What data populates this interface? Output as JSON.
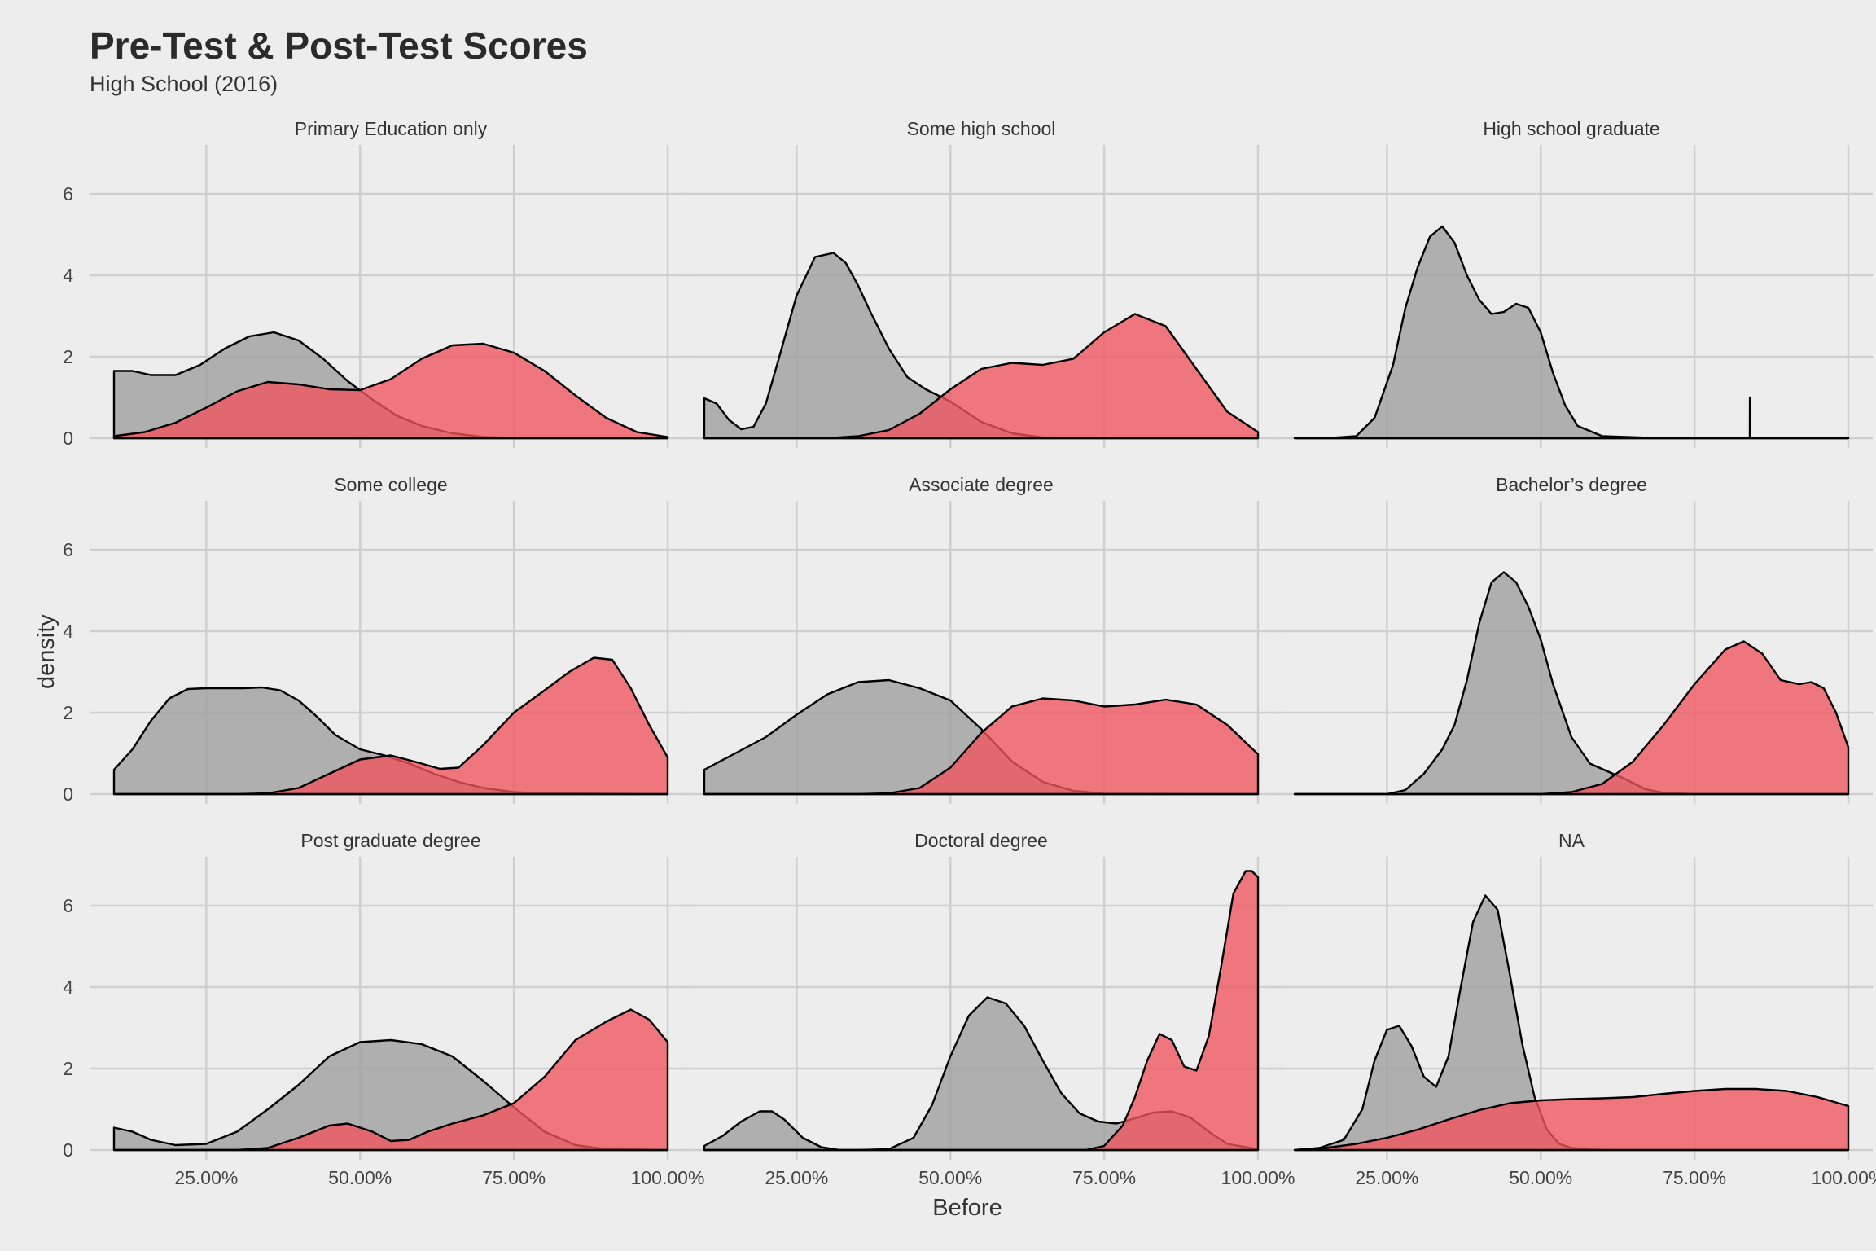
{
  "chart_data": {
    "type": "area",
    "title": "Pre-Test & Post-Test Scores",
    "subtitle": "High School (2016)",
    "xlabel": "Before",
    "ylabel": "density",
    "xlim": [
      0.1,
      1.0
    ],
    "ylim": [
      0,
      7.2
    ],
    "x_ticks": [
      0.25,
      0.5,
      0.75,
      1.0
    ],
    "x_tick_labels": [
      "25.00%",
      "50.00%",
      "75.00%",
      "100.00%"
    ],
    "y_ticks": [
      0,
      2,
      4,
      6
    ],
    "y_tick_labels": [
      "0",
      "2",
      "4",
      "6"
    ],
    "grid": true,
    "legend": "none",
    "colors": {
      "before": "#9e9e9e",
      "after": "#f0545c",
      "line": "#000000",
      "background": "#ededed",
      "grid": "#cfcfcf"
    },
    "panels": [
      {
        "label": "Primary Education only",
        "series": [
          {
            "key": "before",
            "x": [
              0.1,
              0.13,
              0.16,
              0.2,
              0.24,
              0.28,
              0.32,
              0.36,
              0.4,
              0.44,
              0.48,
              0.52,
              0.56,
              0.6,
              0.65,
              0.7,
              0.75,
              0.8,
              0.9,
              1.0
            ],
            "y": [
              1.65,
              1.65,
              1.55,
              1.55,
              1.8,
              2.2,
              2.5,
              2.6,
              2.4,
              1.95,
              1.4,
              0.95,
              0.55,
              0.3,
              0.12,
              0.03,
              0.01,
              0,
              0,
              0
            ]
          },
          {
            "key": "after",
            "x": [
              0.1,
              0.15,
              0.2,
              0.25,
              0.3,
              0.35,
              0.4,
              0.45,
              0.5,
              0.55,
              0.6,
              0.65,
              0.7,
              0.75,
              0.8,
              0.85,
              0.9,
              0.95,
              1.0
            ],
            "y": [
              0.05,
              0.15,
              0.38,
              0.75,
              1.15,
              1.38,
              1.32,
              1.2,
              1.18,
              1.45,
              1.95,
              2.28,
              2.32,
              2.1,
              1.65,
              1.05,
              0.5,
              0.15,
              0.03
            ]
          }
        ]
      },
      {
        "label": "Some high school",
        "series": [
          {
            "key": "before",
            "x": [
              0.1,
              0.12,
              0.14,
              0.16,
              0.18,
              0.2,
              0.22,
              0.25,
              0.28,
              0.31,
              0.33,
              0.35,
              0.37,
              0.4,
              0.43,
              0.46,
              0.5,
              0.55,
              0.6,
              0.65,
              0.75,
              1.0
            ],
            "y": [
              0.98,
              0.85,
              0.45,
              0.22,
              0.28,
              0.85,
              1.9,
              3.5,
              4.45,
              4.55,
              4.3,
              3.75,
              3.1,
              2.2,
              1.5,
              1.2,
              0.9,
              0.4,
              0.12,
              0.02,
              0,
              0
            ]
          },
          {
            "key": "after",
            "x": [
              0.1,
              0.3,
              0.35,
              0.4,
              0.45,
              0.5,
              0.55,
              0.6,
              0.65,
              0.7,
              0.75,
              0.8,
              0.85,
              0.9,
              0.95,
              1.0
            ],
            "y": [
              0,
              0,
              0.05,
              0.2,
              0.6,
              1.2,
              1.7,
              1.85,
              1.8,
              1.95,
              2.6,
              3.05,
              2.75,
              1.7,
              0.65,
              0.15
            ]
          }
        ]
      },
      {
        "label": "High school graduate",
        "series": [
          {
            "key": "before",
            "x": [
              0.1,
              0.15,
              0.2,
              0.23,
              0.26,
              0.28,
              0.3,
              0.32,
              0.34,
              0.36,
              0.38,
              0.4,
              0.42,
              0.44,
              0.46,
              0.48,
              0.5,
              0.52,
              0.54,
              0.56,
              0.6,
              0.7,
              1.0
            ],
            "y": [
              0,
              0,
              0.05,
              0.5,
              1.8,
              3.2,
              4.2,
              4.95,
              5.2,
              4.8,
              4.0,
              3.4,
              3.05,
              3.1,
              3.3,
              3.2,
              2.6,
              1.6,
              0.8,
              0.3,
              0.05,
              0,
              0
            ]
          },
          {
            "key": "after",
            "x": [
              0.1,
              0.8399,
              0.84,
              0.8401,
              1.0
            ],
            "y": [
              0,
              0,
              1.0,
              0,
              0
            ]
          }
        ]
      },
      {
        "label": "Some college",
        "series": [
          {
            "key": "before",
            "x": [
              0.1,
              0.13,
              0.16,
              0.19,
              0.22,
              0.25,
              0.28,
              0.31,
              0.34,
              0.37,
              0.4,
              0.43,
              0.46,
              0.5,
              0.54,
              0.58,
              0.62,
              0.66,
              0.7,
              0.75,
              0.8,
              1.0
            ],
            "y": [
              0.6,
              1.1,
              1.8,
              2.35,
              2.58,
              2.6,
              2.6,
              2.6,
              2.62,
              2.55,
              2.3,
              1.9,
              1.45,
              1.1,
              0.95,
              0.75,
              0.5,
              0.3,
              0.15,
              0.05,
              0.02,
              0
            ]
          },
          {
            "key": "after",
            "x": [
              0.1,
              0.3,
              0.35,
              0.4,
              0.45,
              0.5,
              0.55,
              0.6,
              0.63,
              0.66,
              0.7,
              0.75,
              0.8,
              0.84,
              0.88,
              0.91,
              0.94,
              0.97,
              1.0
            ],
            "y": [
              0,
              0,
              0.02,
              0.15,
              0.5,
              0.85,
              0.95,
              0.75,
              0.62,
              0.65,
              1.2,
              2.0,
              2.55,
              3.0,
              3.35,
              3.3,
              2.6,
              1.7,
              0.9
            ]
          }
        ]
      },
      {
        "label": "Associate degree",
        "series": [
          {
            "key": "before",
            "x": [
              0.1,
              0.15,
              0.2,
              0.25,
              0.3,
              0.35,
              0.4,
              0.45,
              0.5,
              0.55,
              0.6,
              0.65,
              0.7,
              0.75,
              1.0
            ],
            "y": [
              0.6,
              1.0,
              1.4,
              1.95,
              2.45,
              2.75,
              2.8,
              2.6,
              2.3,
              1.6,
              0.8,
              0.3,
              0.08,
              0.01,
              0
            ]
          },
          {
            "key": "after",
            "x": [
              0.1,
              0.35,
              0.4,
              0.45,
              0.5,
              0.55,
              0.6,
              0.65,
              0.7,
              0.75,
              0.8,
              0.85,
              0.9,
              0.95,
              1.0
            ],
            "y": [
              0,
              0,
              0.02,
              0.15,
              0.65,
              1.5,
              2.15,
              2.35,
              2.3,
              2.15,
              2.2,
              2.32,
              2.2,
              1.7,
              0.98
            ]
          }
        ]
      },
      {
        "label": "Bachelor’s degree",
        "series": [
          {
            "key": "before",
            "x": [
              0.1,
              0.25,
              0.28,
              0.31,
              0.34,
              0.36,
              0.38,
              0.4,
              0.42,
              0.44,
              0.46,
              0.48,
              0.5,
              0.52,
              0.55,
              0.58,
              0.61,
              0.64,
              0.67,
              0.7,
              0.75,
              1.0
            ],
            "y": [
              0,
              0,
              0.1,
              0.5,
              1.1,
              1.7,
              2.8,
              4.2,
              5.2,
              5.45,
              5.2,
              4.6,
              3.8,
              2.7,
              1.4,
              0.75,
              0.55,
              0.35,
              0.12,
              0.03,
              0,
              0
            ]
          },
          {
            "key": "after",
            "x": [
              0.1,
              0.5,
              0.55,
              0.6,
              0.65,
              0.7,
              0.75,
              0.8,
              0.83,
              0.86,
              0.89,
              0.92,
              0.94,
              0.96,
              0.98,
              1.0
            ],
            "y": [
              0,
              0,
              0.05,
              0.25,
              0.8,
              1.7,
              2.7,
              3.55,
              3.75,
              3.45,
              2.8,
              2.7,
              2.75,
              2.6,
              2.0,
              1.15
            ]
          }
        ]
      },
      {
        "label": "Post graduate degree",
        "series": [
          {
            "key": "before",
            "x": [
              0.1,
              0.13,
              0.16,
              0.2,
              0.25,
              0.3,
              0.35,
              0.4,
              0.45,
              0.5,
              0.55,
              0.6,
              0.65,
              0.7,
              0.75,
              0.8,
              0.85,
              0.9,
              1.0
            ],
            "y": [
              0.55,
              0.45,
              0.25,
              0.12,
              0.15,
              0.45,
              1.0,
              1.6,
              2.3,
              2.65,
              2.7,
              2.6,
              2.3,
              1.7,
              1.05,
              0.45,
              0.12,
              0.02,
              0
            ]
          },
          {
            "key": "after",
            "x": [
              0.1,
              0.3,
              0.35,
              0.4,
              0.45,
              0.48,
              0.52,
              0.55,
              0.58,
              0.61,
              0.65,
              0.7,
              0.75,
              0.8,
              0.85,
              0.9,
              0.94,
              0.97,
              1.0
            ],
            "y": [
              0,
              0,
              0.05,
              0.3,
              0.6,
              0.65,
              0.45,
              0.22,
              0.25,
              0.45,
              0.65,
              0.85,
              1.15,
              1.8,
              2.7,
              3.15,
              3.45,
              3.2,
              2.65
            ]
          }
        ]
      },
      {
        "label": "Doctoral degree",
        "series": [
          {
            "key": "before",
            "x": [
              0.1,
              0.13,
              0.16,
              0.19,
              0.21,
              0.23,
              0.26,
              0.29,
              0.32,
              0.35,
              0.4,
              0.44,
              0.47,
              0.5,
              0.53,
              0.56,
              0.59,
              0.62,
              0.65,
              0.68,
              0.71,
              0.74,
              0.77,
              0.8,
              0.83,
              0.86,
              0.89,
              0.92,
              0.95,
              1.0
            ],
            "y": [
              0.1,
              0.35,
              0.7,
              0.95,
              0.95,
              0.75,
              0.3,
              0.07,
              0,
              0,
              0.02,
              0.3,
              1.1,
              2.3,
              3.3,
              3.75,
              3.6,
              3.05,
              2.2,
              1.4,
              0.9,
              0.7,
              0.65,
              0.78,
              0.92,
              0.95,
              0.8,
              0.45,
              0.15,
              0.02
            ]
          },
          {
            "key": "after",
            "x": [
              0.1,
              0.72,
              0.75,
              0.78,
              0.8,
              0.82,
              0.84,
              0.86,
              0.88,
              0.9,
              0.92,
              0.94,
              0.96,
              0.98,
              0.99,
              1.0
            ],
            "y": [
              0,
              0,
              0.1,
              0.6,
              1.3,
              2.2,
              2.85,
              2.7,
              2.05,
              1.95,
              2.8,
              4.5,
              6.3,
              6.85,
              6.85,
              6.7
            ]
          }
        ]
      },
      {
        "label": "NA",
        "series": [
          {
            "key": "before",
            "x": [
              0.1,
              0.14,
              0.18,
              0.21,
              0.23,
              0.25,
              0.27,
              0.29,
              0.31,
              0.33,
              0.35,
              0.37,
              0.39,
              0.41,
              0.43,
              0.45,
              0.47,
              0.49,
              0.51,
              0.53,
              0.55,
              0.58,
              0.62,
              1.0
            ],
            "y": [
              0,
              0.05,
              0.25,
              1.0,
              2.2,
              2.95,
              3.05,
              2.55,
              1.8,
              1.55,
              2.3,
              4.0,
              5.6,
              6.25,
              5.9,
              4.3,
              2.6,
              1.3,
              0.5,
              0.15,
              0.05,
              0.01,
              0,
              0
            ]
          },
          {
            "key": "after",
            "x": [
              0.1,
              0.15,
              0.2,
              0.25,
              0.3,
              0.35,
              0.4,
              0.45,
              0.5,
              0.55,
              0.6,
              0.65,
              0.7,
              0.75,
              0.8,
              0.85,
              0.9,
              0.95,
              1.0
            ],
            "y": [
              0,
              0.05,
              0.15,
              0.3,
              0.5,
              0.75,
              0.98,
              1.15,
              1.22,
              1.25,
              1.27,
              1.3,
              1.38,
              1.45,
              1.5,
              1.5,
              1.45,
              1.3,
              1.08
            ]
          }
        ]
      }
    ]
  }
}
